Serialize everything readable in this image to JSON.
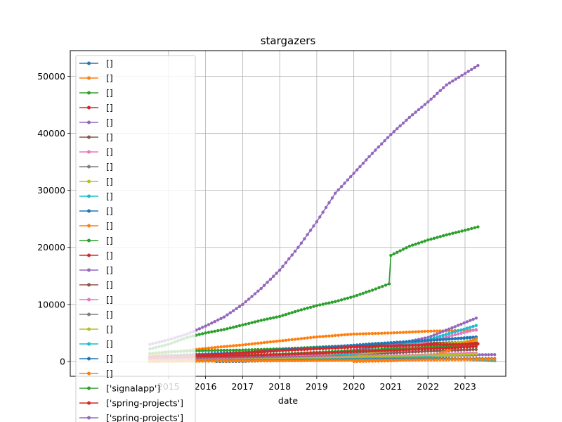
{
  "chart_data": {
    "type": "line",
    "title": "stargazers",
    "xlabel": "date",
    "ylabel": "",
    "xlim": [
      2012.35,
      2024.1
    ],
    "ylim": [
      -2600,
      54500
    ],
    "x_ticks": [
      {
        "label": "2015",
        "value": 2015
      },
      {
        "label": "2016",
        "value": 2016
      },
      {
        "label": "2017",
        "value": 2017
      },
      {
        "label": "2018",
        "value": 2018
      },
      {
        "label": "2019",
        "value": 2019
      },
      {
        "label": "2020",
        "value": 2020
      },
      {
        "label": "2021",
        "value": 2021
      },
      {
        "label": "2022",
        "value": 2022
      },
      {
        "label": "2023",
        "value": 2023
      }
    ],
    "y_ticks": [
      0,
      10000,
      20000,
      30000,
      40000,
      50000
    ],
    "grid": true,
    "legend_location": "upper left, overflowing below the axes",
    "series": [
      {
        "name": "[]",
        "color": "#1f77b4",
        "points": [
          [
            2014.5,
            900
          ],
          [
            2016,
            1300
          ],
          [
            2018,
            1900
          ],
          [
            2020,
            2600
          ],
          [
            2021,
            3200
          ],
          [
            2022,
            3700
          ],
          [
            2023.3,
            4200
          ]
        ]
      },
      {
        "name": "[]",
        "color": "#ff7f0e",
        "points": [
          [
            2014.5,
            1200
          ],
          [
            2016,
            2300
          ],
          [
            2017,
            2900
          ],
          [
            2018,
            3600
          ],
          [
            2019,
            4300
          ],
          [
            2020,
            4800
          ],
          [
            2021,
            5000
          ],
          [
            2022,
            5300
          ],
          [
            2023.3,
            5500
          ]
        ]
      },
      {
        "name": "[]",
        "color": "#2ca02c",
        "points": [
          [
            2014.5,
            1400
          ],
          [
            2015,
            1700
          ],
          [
            2016,
            1900
          ],
          [
            2017,
            2000
          ],
          [
            2018,
            2200
          ],
          [
            2019,
            2500
          ],
          [
            2020,
            2800
          ],
          [
            2021,
            3000
          ],
          [
            2022,
            3200
          ],
          [
            2023.3,
            3400
          ]
        ]
      },
      {
        "name": "[]",
        "color": "#d62728",
        "points": [
          [
            2014.5,
            700
          ],
          [
            2016,
            1100
          ],
          [
            2017,
            1500
          ],
          [
            2017.8,
            1900
          ],
          [
            2019,
            2300
          ],
          [
            2020,
            2600
          ],
          [
            2021,
            2900
          ],
          [
            2022,
            3100
          ],
          [
            2023.3,
            3300
          ]
        ]
      },
      {
        "name": "[]",
        "color": "#9467bd",
        "points": [
          [
            2014.5,
            500
          ],
          [
            2016,
            700
          ],
          [
            2018,
            900
          ],
          [
            2019,
            1300
          ],
          [
            2020,
            2000
          ],
          [
            2021,
            2900
          ],
          [
            2022,
            4200
          ],
          [
            2023.3,
            7600
          ]
        ]
      },
      {
        "name": "[]",
        "color": "#8c564b",
        "points": [
          [
            2014.5,
            200
          ],
          [
            2016,
            400
          ],
          [
            2018,
            700
          ],
          [
            2019,
            1000
          ],
          [
            2020,
            1200
          ],
          [
            2021,
            1500
          ],
          [
            2022,
            1800
          ],
          [
            2023.3,
            2100
          ]
        ]
      },
      {
        "name": "[]",
        "color": "#e377c2",
        "points": [
          [
            2014.5,
            300
          ],
          [
            2016,
            500
          ],
          [
            2018,
            800
          ],
          [
            2019,
            1100
          ],
          [
            2020,
            1500
          ],
          [
            2021,
            2100
          ],
          [
            2022,
            3500
          ],
          [
            2023.3,
            5600
          ]
        ]
      },
      {
        "name": "[]",
        "color": "#7f7f7f",
        "points": [
          [
            2014.5,
            100
          ],
          [
            2016,
            300
          ],
          [
            2018,
            500
          ],
          [
            2019,
            900
          ],
          [
            2020,
            1300
          ],
          [
            2021,
            1800
          ],
          [
            2022,
            2300
          ],
          [
            2023.3,
            2800
          ]
        ]
      },
      {
        "name": "[]",
        "color": "#bcbd22",
        "points": [
          [
            2014.5,
            200
          ],
          [
            2016,
            300
          ],
          [
            2018,
            400
          ],
          [
            2019,
            800
          ],
          [
            2020,
            1300
          ],
          [
            2021,
            1900
          ],
          [
            2022,
            2700
          ],
          [
            2023.3,
            3700
          ]
        ]
      },
      {
        "name": "[]",
        "color": "#17becf",
        "points": [
          [
            2014.5,
            100
          ],
          [
            2016,
            200
          ],
          [
            2018,
            300
          ],
          [
            2019,
            600
          ],
          [
            2020,
            1400
          ],
          [
            2021,
            2400
          ],
          [
            2022,
            3800
          ],
          [
            2023.3,
            6300
          ]
        ]
      },
      {
        "name": "[]",
        "color": "#1f77b4",
        "points": [
          [
            2016.3,
            0
          ],
          [
            2017,
            0
          ],
          [
            2017.5,
            100
          ],
          [
            2017.6,
            1900
          ],
          [
            2018.5,
            2200
          ],
          [
            2019.5,
            2600
          ],
          [
            2020.5,
            3100
          ],
          [
            2021.5,
            3500
          ],
          [
            2022.5,
            3900
          ],
          [
            2023.3,
            4300
          ]
        ]
      },
      {
        "name": "[]",
        "color": "#ff7f0e",
        "points": [
          [
            2020,
            0
          ],
          [
            2021,
            100
          ],
          [
            2021.5,
            300
          ],
          [
            2022,
            800
          ],
          [
            2022.5,
            1800
          ],
          [
            2023,
            3200
          ],
          [
            2023.3,
            4000
          ]
        ]
      },
      {
        "name": "[]",
        "color": "#2ca02c",
        "points": [
          [
            2014.5,
            600
          ],
          [
            2016,
            900
          ],
          [
            2018,
            1300
          ],
          [
            2020,
            1900
          ],
          [
            2022,
            2500
          ],
          [
            2023.3,
            2900
          ]
        ]
      },
      {
        "name": "[]",
        "color": "#d62728",
        "points": [
          [
            2014.5,
            400
          ],
          [
            2016,
            800
          ],
          [
            2018,
            1200
          ],
          [
            2020,
            1700
          ],
          [
            2022,
            2200
          ],
          [
            2023.3,
            2600
          ]
        ]
      },
      {
        "name": "[]",
        "color": "#9467bd",
        "points": [
          [
            2014.5,
            300
          ],
          [
            2016,
            500
          ],
          [
            2018,
            700
          ],
          [
            2020,
            900
          ],
          [
            2022,
            1100
          ],
          [
            2023.8,
            1200
          ]
        ]
      },
      {
        "name": "[]",
        "color": "#8c564b",
        "points": [
          [
            2014.5,
            200
          ],
          [
            2016,
            400
          ],
          [
            2018,
            600
          ],
          [
            2020,
            800
          ],
          [
            2022,
            1000
          ],
          [
            2023.3,
            1100
          ]
        ]
      },
      {
        "name": "[]",
        "color": "#e377c2",
        "points": [
          [
            2014.5,
            100
          ],
          [
            2016,
            300
          ],
          [
            2018,
            500
          ],
          [
            2020,
            800
          ],
          [
            2022,
            1200
          ],
          [
            2023.3,
            1500
          ]
        ]
      },
      {
        "name": "[]",
        "color": "#7f7f7f",
        "points": [
          [
            2014.5,
            0
          ],
          [
            2016,
            100
          ],
          [
            2018,
            300
          ],
          [
            2020,
            600
          ],
          [
            2022,
            900
          ],
          [
            2023.3,
            1200
          ]
        ]
      },
      {
        "name": "[]",
        "color": "#bcbd22",
        "points": [
          [
            2014.5,
            100
          ],
          [
            2016,
            200
          ],
          [
            2018,
            400
          ],
          [
            2020,
            700
          ],
          [
            2022,
            1000
          ],
          [
            2023.3,
            1300
          ]
        ]
      },
      {
        "name": "[]",
        "color": "#17becf",
        "points": [
          [
            2014.5,
            0
          ],
          [
            2016,
            100
          ],
          [
            2018,
            200
          ],
          [
            2020,
            400
          ],
          [
            2022,
            700
          ],
          [
            2023.8,
            100
          ]
        ]
      },
      {
        "name": "[]",
        "color": "#1f77b4",
        "points": [
          [
            2014.5,
            0
          ],
          [
            2016,
            100
          ],
          [
            2018,
            200
          ],
          [
            2020,
            300
          ],
          [
            2022,
            400
          ],
          [
            2023.8,
            500
          ]
        ]
      },
      {
        "name": "[]",
        "color": "#ff7f0e",
        "points": [
          [
            2014.5,
            0
          ],
          [
            2016,
            50
          ],
          [
            2018,
            100
          ],
          [
            2020,
            200
          ],
          [
            2022,
            300
          ],
          [
            2023.8,
            400
          ]
        ]
      },
      {
        "name": "['signalapp']",
        "color": "#2ca02c",
        "points": [
          [
            2014.5,
            2200
          ],
          [
            2015,
            3000
          ],
          [
            2015.5,
            4200
          ],
          [
            2016,
            5000
          ],
          [
            2016.5,
            5600
          ],
          [
            2017,
            6400
          ],
          [
            2017.5,
            7200
          ],
          [
            2018,
            7900
          ],
          [
            2018.5,
            8900
          ],
          [
            2019,
            9800
          ],
          [
            2019.5,
            10500
          ],
          [
            2020,
            11400
          ],
          [
            2020.5,
            12500
          ],
          [
            2020.95,
            13600
          ],
          [
            2021,
            18600
          ],
          [
            2021.5,
            20200
          ],
          [
            2022,
            21300
          ],
          [
            2022.5,
            22200
          ],
          [
            2023,
            23000
          ],
          [
            2023.35,
            23600
          ]
        ]
      },
      {
        "name": "['spring-projects']",
        "color": "#d62728",
        "points": [
          [
            2014.5,
            800
          ],
          [
            2015,
            900
          ],
          [
            2016,
            1100
          ],
          [
            2017,
            1400
          ],
          [
            2017.6,
            1700
          ],
          [
            2018,
            1900
          ],
          [
            2019,
            2200
          ],
          [
            2020,
            2500
          ],
          [
            2021,
            2700
          ],
          [
            2022,
            2900
          ],
          [
            2023.35,
            3100
          ]
        ]
      },
      {
        "name": "['spring-projects']",
        "color": "#9467bd",
        "points": [
          [
            2014.5,
            3000
          ],
          [
            2015,
            3800
          ],
          [
            2015.5,
            4800
          ],
          [
            2016,
            6200
          ],
          [
            2016.5,
            7800
          ],
          [
            2017,
            10000
          ],
          [
            2017.5,
            12800
          ],
          [
            2018,
            16000
          ],
          [
            2018.5,
            20000
          ],
          [
            2019,
            24500
          ],
          [
            2019.5,
            29500
          ],
          [
            2020,
            33000
          ],
          [
            2020.5,
            36500
          ],
          [
            2021,
            39800
          ],
          [
            2021.5,
            42800
          ],
          [
            2022,
            45500
          ],
          [
            2022.5,
            48500
          ],
          [
            2023,
            50500
          ],
          [
            2023.35,
            51900
          ]
        ]
      }
    ]
  }
}
